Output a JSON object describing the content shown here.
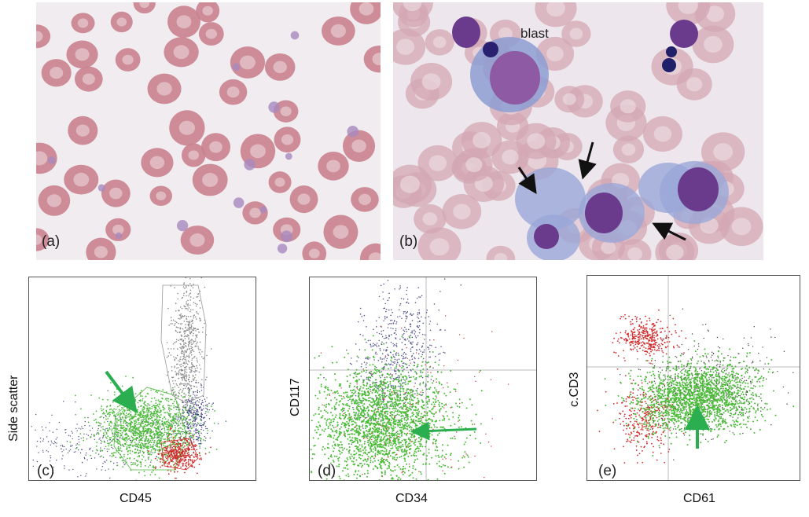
{
  "panels": {
    "a": {
      "label": "(a)"
    },
    "b": {
      "label": "(b)",
      "annotation": "blast"
    },
    "c": {
      "label": "(c)",
      "xlabel": "CD45",
      "ylabel": "Side scatter"
    },
    "d": {
      "label": "(d)",
      "xlabel": "CD34",
      "ylabel": "CD117"
    },
    "e": {
      "label": "(e)",
      "xlabel": "CD61",
      "ylabel": "c.CD3"
    }
  },
  "colors": {
    "rbc": "#c9828e",
    "rbc_center": "#ecd6da",
    "blast_cytoplasm": "#8d9dd2",
    "nucleus": "#6a3a8c",
    "population_green": "#4cbb3a",
    "population_red": "#d22c2c",
    "population_grey": "#8a8a8a",
    "population_navy": "#3d3f86",
    "arrow_green": "#2aae4f",
    "arrow_black": "#111111"
  }
}
